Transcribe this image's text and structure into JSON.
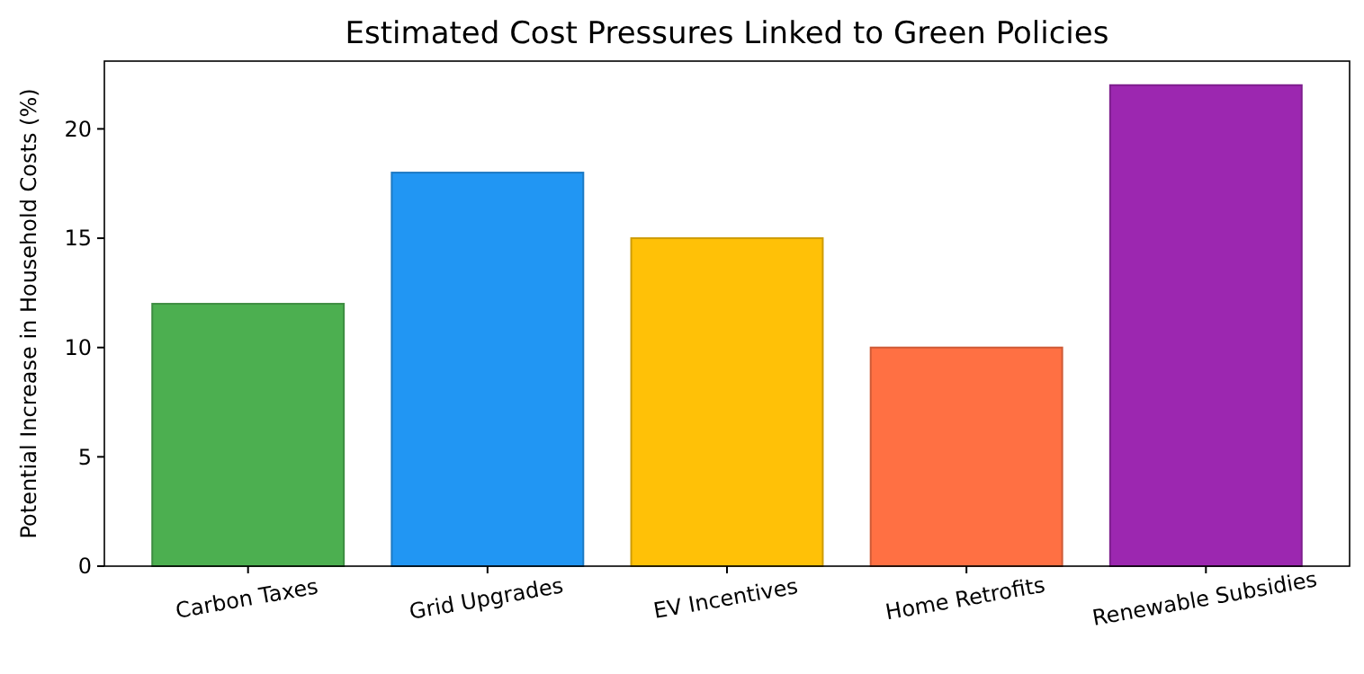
{
  "chart_data": {
    "type": "bar",
    "title": "Estimated Cost Pressures Linked to Green Policies",
    "ylabel": "Potential Increase in Household Costs (%)",
    "categories": [
      "Carbon Taxes",
      "Grid Upgrades",
      "EV Incentives",
      "Home Retrofits",
      "Renewable Subsidies"
    ],
    "values": [
      12,
      18,
      15,
      10,
      22
    ],
    "colors": [
      "#4caf50",
      "#2196f3",
      "#ffc107",
      "#ff7043",
      "#9c27b0"
    ],
    "ylim": [
      0,
      23.1
    ],
    "yticks": [
      0,
      5,
      10,
      15,
      20
    ],
    "grid": false
  }
}
